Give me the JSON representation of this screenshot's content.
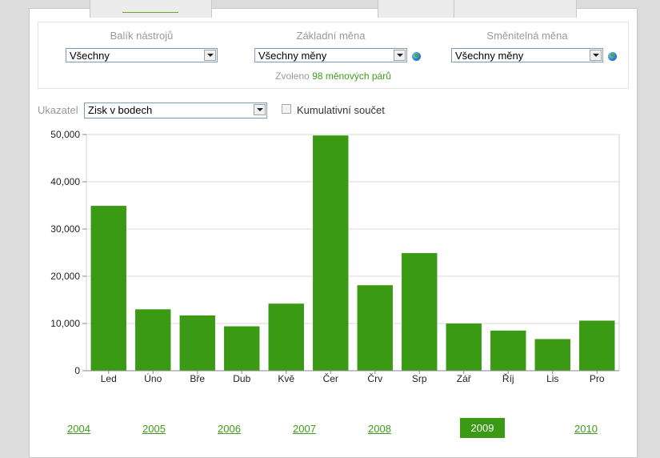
{
  "filters": {
    "toolkit": {
      "label": "Balík nástrojů",
      "value": "Všechny"
    },
    "base_currency": {
      "label": "Základní měna",
      "value": "Všechny měny"
    },
    "quote_currency": {
      "label": "Směnitelná měna",
      "value": "Všechny měny"
    },
    "selected_prefix": "Zvoleno",
    "selected_count": "98 měnových párů"
  },
  "indicator": {
    "label": "Ukazatel",
    "value": "Zisk v bodech",
    "cumulative_label": "Kumulativní součet"
  },
  "colors": {
    "bar": "#3a9a14",
    "accent_text": "#3f9b1a",
    "grid": "#d8d8d8"
  },
  "chart_data": {
    "type": "bar",
    "categories": [
      "Led",
      "Úno",
      "Bře",
      "Dub",
      "Kvě",
      "Čer",
      "Črv",
      "Srp",
      "Zář",
      "Říj",
      "Lis",
      "Pro"
    ],
    "values": [
      34900,
      13000,
      11700,
      9400,
      14200,
      49800,
      18100,
      24900,
      10000,
      8500,
      6700,
      10600
    ],
    "ylim": [
      0,
      50000
    ],
    "yticks": [
      "0",
      "10,000",
      "20,000",
      "30,000",
      "40,000",
      "50,000"
    ],
    "ytick_values": [
      0,
      10000,
      20000,
      30000,
      40000,
      50000
    ],
    "grid": true,
    "title": "",
    "xlabel": "",
    "ylabel": ""
  },
  "years": {
    "items": [
      "2004",
      "2005",
      "2006",
      "2007",
      "2008",
      "2009",
      "2010"
    ],
    "active": "2009"
  }
}
